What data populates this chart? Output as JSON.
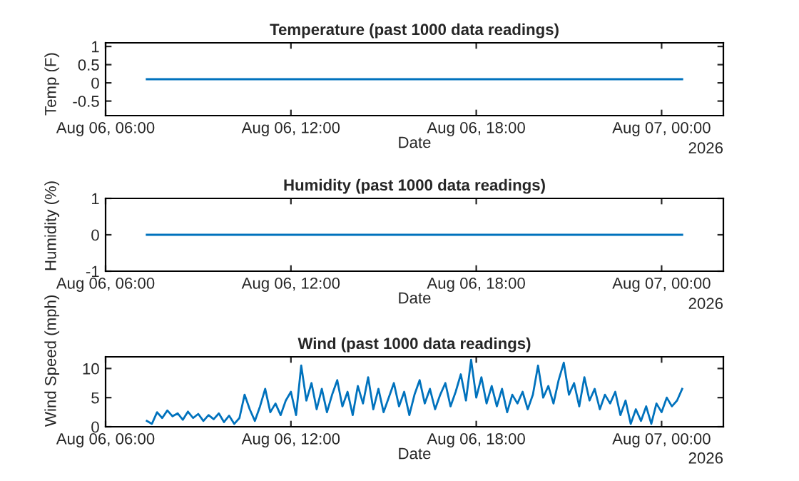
{
  "chart_data": [
    {
      "type": "line",
      "title": "Temperature (past 1000 data readings)",
      "xlabel": "Date",
      "ylabel": "Temp (F)",
      "annotations": [
        "2026"
      ],
      "x": [
        "2026-08-06T07:20",
        "2026-08-07T00:40"
      ],
      "series": [
        {
          "color": "#0072bd",
          "values": [
            0.1,
            0.1
          ]
        }
      ],
      "xlim": [
        "2026-08-06T06:00",
        "2026-08-07T02:00"
      ],
      "xticks": [
        {
          "value": "2026-08-06T06:00",
          "label": "Aug 06, 06:00"
        },
        {
          "value": "2026-08-06T12:00",
          "label": "Aug 06, 12:00"
        },
        {
          "value": "2026-08-06T18:00",
          "label": "Aug 06, 18:00"
        },
        {
          "value": "2026-08-07T00:00",
          "label": "Aug 07, 00:00"
        }
      ],
      "ylim": [
        -0.9,
        1.1
      ],
      "yticks": [
        -0.5,
        0,
        0.5,
        1
      ],
      "grid": false,
      "legend": false
    },
    {
      "type": "line",
      "title": "Humidity (past 1000 data readings)",
      "xlabel": "Date",
      "ylabel": "Humidity (%)",
      "annotations": [
        "2026"
      ],
      "x": [
        "2026-08-06T07:20",
        "2026-08-07T00:40"
      ],
      "series": [
        {
          "color": "#0072bd",
          "values": [
            0,
            0
          ]
        }
      ],
      "xlim": [
        "2026-08-06T06:00",
        "2026-08-07T02:00"
      ],
      "xticks": [
        {
          "value": "2026-08-06T06:00",
          "label": "Aug 06, 06:00"
        },
        {
          "value": "2026-08-06T12:00",
          "label": "Aug 06, 12:00"
        },
        {
          "value": "2026-08-06T18:00",
          "label": "Aug 06, 18:00"
        },
        {
          "value": "2026-08-07T00:00",
          "label": "Aug 07, 00:00"
        }
      ],
      "ylim": [
        -1,
        1
      ],
      "yticks": [
        -1,
        0,
        1
      ],
      "grid": false,
      "legend": false
    },
    {
      "type": "line",
      "title": "Wind (past 1000 data readings)",
      "xlabel": "Date",
      "ylabel": "Wind Speed (mph)",
      "annotations": [
        "2026"
      ],
      "x": [
        "2026-08-06T07:20",
        "2026-08-06T07:30",
        "2026-08-06T07:40",
        "2026-08-06T07:50",
        "2026-08-06T08:00",
        "2026-08-06T08:10",
        "2026-08-06T08:20",
        "2026-08-06T08:30",
        "2026-08-06T08:40",
        "2026-08-06T08:50",
        "2026-08-06T09:00",
        "2026-08-06T09:10",
        "2026-08-06T09:20",
        "2026-08-06T09:30",
        "2026-08-06T09:40",
        "2026-08-06T09:50",
        "2026-08-06T10:00",
        "2026-08-06T10:10",
        "2026-08-06T10:20",
        "2026-08-06T10:30",
        "2026-08-06T10:40",
        "2026-08-06T10:50",
        "2026-08-06T11:00",
        "2026-08-06T11:10",
        "2026-08-06T11:20",
        "2026-08-06T11:30",
        "2026-08-06T11:40",
        "2026-08-06T11:50",
        "2026-08-06T12:00",
        "2026-08-06T12:10",
        "2026-08-06T12:20",
        "2026-08-06T12:30",
        "2026-08-06T12:40",
        "2026-08-06T12:50",
        "2026-08-06T13:00",
        "2026-08-06T13:10",
        "2026-08-06T13:20",
        "2026-08-06T13:30",
        "2026-08-06T13:40",
        "2026-08-06T13:50",
        "2026-08-06T14:00",
        "2026-08-06T14:10",
        "2026-08-06T14:20",
        "2026-08-06T14:30",
        "2026-08-06T14:40",
        "2026-08-06T14:50",
        "2026-08-06T15:00",
        "2026-08-06T15:10",
        "2026-08-06T15:20",
        "2026-08-06T15:30",
        "2026-08-06T15:40",
        "2026-08-06T15:50",
        "2026-08-06T16:00",
        "2026-08-06T16:10",
        "2026-08-06T16:20",
        "2026-08-06T16:30",
        "2026-08-06T16:40",
        "2026-08-06T16:50",
        "2026-08-06T17:00",
        "2026-08-06T17:10",
        "2026-08-06T17:20",
        "2026-08-06T17:30",
        "2026-08-06T17:40",
        "2026-08-06T17:50",
        "2026-08-06T18:00",
        "2026-08-06T18:10",
        "2026-08-06T18:20",
        "2026-08-06T18:30",
        "2026-08-06T18:40",
        "2026-08-06T18:50",
        "2026-08-06T19:00",
        "2026-08-06T19:10",
        "2026-08-06T19:20",
        "2026-08-06T19:30",
        "2026-08-06T19:40",
        "2026-08-06T19:50",
        "2026-08-06T20:00",
        "2026-08-06T20:10",
        "2026-08-06T20:20",
        "2026-08-06T20:30",
        "2026-08-06T20:40",
        "2026-08-06T20:50",
        "2026-08-06T21:00",
        "2026-08-06T21:10",
        "2026-08-06T21:20",
        "2026-08-06T21:30",
        "2026-08-06T21:40",
        "2026-08-06T21:50",
        "2026-08-06T22:00",
        "2026-08-06T22:10",
        "2026-08-06T22:20",
        "2026-08-06T22:30",
        "2026-08-06T22:40",
        "2026-08-06T22:50",
        "2026-08-06T23:00",
        "2026-08-06T23:10",
        "2026-08-06T23:20",
        "2026-08-06T23:30",
        "2026-08-06T23:40",
        "2026-08-06T23:50",
        "2026-08-07T00:00",
        "2026-08-07T00:10",
        "2026-08-07T00:20",
        "2026-08-07T00:30",
        "2026-08-07T00:40"
      ],
      "series": [
        {
          "color": "#0072bd",
          "values": [
            1.0,
            0.5,
            2.5,
            1.5,
            2.8,
            1.8,
            2.3,
            1.2,
            2.6,
            1.5,
            2.2,
            1.0,
            2.0,
            1.3,
            2.3,
            0.8,
            1.9,
            0.5,
            1.5,
            5.5,
            3.0,
            1.0,
            3.5,
            6.5,
            2.5,
            4.0,
            2.0,
            4.5,
            6.0,
            2.0,
            10.5,
            4.5,
            7.5,
            3.0,
            6.5,
            2.5,
            5.5,
            8.0,
            3.5,
            6.0,
            2.0,
            7.0,
            4.0,
            8.5,
            3.0,
            6.5,
            2.5,
            5.0,
            7.5,
            3.5,
            6.0,
            2.0,
            5.5,
            8.0,
            4.0,
            6.5,
            3.0,
            5.5,
            7.5,
            3.5,
            6.0,
            9.0,
            4.5,
            11.5,
            5.0,
            8.5,
            4.0,
            7.0,
            3.5,
            6.5,
            2.5,
            5.5,
            4.0,
            6.0,
            3.0,
            5.5,
            10.5,
            5.0,
            7.0,
            4.0,
            8.0,
            11.0,
            5.5,
            7.5,
            3.5,
            8.5,
            4.5,
            6.5,
            3.0,
            5.5,
            4.0,
            6.0,
            2.0,
            4.5,
            0.5,
            3.0,
            1.0,
            3.5,
            0.5,
            4.0,
            2.5,
            5.0,
            3.5,
            4.5,
            6.5
          ]
        }
      ],
      "xlim": [
        "2026-08-06T06:00",
        "2026-08-07T02:00"
      ],
      "xticks": [
        {
          "value": "2026-08-06T06:00",
          "label": "Aug 06, 06:00"
        },
        {
          "value": "2026-08-06T12:00",
          "label": "Aug 06, 12:00"
        },
        {
          "value": "2026-08-06T18:00",
          "label": "Aug 06, 18:00"
        },
        {
          "value": "2026-08-07T00:00",
          "label": "Aug 07, 00:00"
        }
      ],
      "ylim": [
        0,
        12
      ],
      "yticks": [
        0,
        5,
        10
      ],
      "grid": false,
      "legend": false
    }
  ]
}
